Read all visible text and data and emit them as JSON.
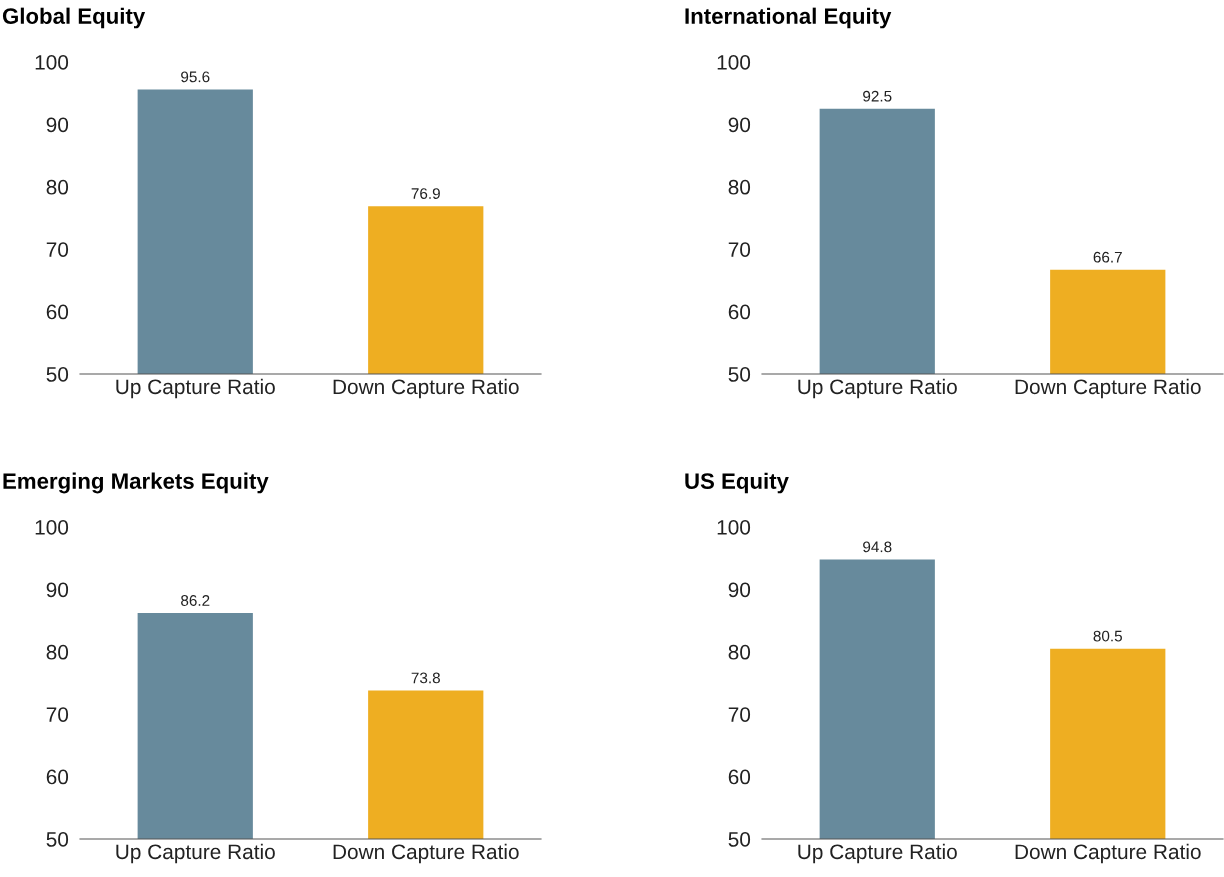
{
  "chart_data": [
    {
      "type": "bar",
      "title": "Global Equity",
      "categories": [
        "Up Capture Ratio",
        "Down Capture Ratio"
      ],
      "values": [
        95.6,
        76.9
      ],
      "colors": [
        "#678a9c",
        "#eeae22"
      ],
      "ylim": [
        50,
        100
      ],
      "yticks": [
        50,
        60,
        70,
        80,
        90,
        100
      ],
      "data_labels": true,
      "grid": false
    },
    {
      "type": "bar",
      "title": "International Equity",
      "categories": [
        "Up Capture Ratio",
        "Down Capture Ratio"
      ],
      "values": [
        92.5,
        66.7
      ],
      "colors": [
        "#678a9c",
        "#eeae22"
      ],
      "ylim": [
        50,
        100
      ],
      "yticks": [
        50,
        60,
        70,
        80,
        90,
        100
      ],
      "data_labels": true,
      "grid": false
    },
    {
      "type": "bar",
      "title": "Emerging Markets Equity",
      "categories": [
        "Up Capture Ratio",
        "Down Capture Ratio"
      ],
      "values": [
        86.2,
        73.8
      ],
      "colors": [
        "#678a9c",
        "#eeae22"
      ],
      "ylim": [
        50,
        100
      ],
      "yticks": [
        50,
        60,
        70,
        80,
        90,
        100
      ],
      "data_labels": true,
      "grid": false
    },
    {
      "type": "bar",
      "title": "US Equity",
      "categories": [
        "Up Capture Ratio",
        "Down Capture Ratio"
      ],
      "values": [
        94.8,
        80.5
      ],
      "colors": [
        "#678a9c",
        "#eeae22"
      ],
      "ylim": [
        50,
        100
      ],
      "yticks": [
        50,
        60,
        70,
        80,
        90,
        100
      ],
      "data_labels": true,
      "grid": false
    }
  ]
}
